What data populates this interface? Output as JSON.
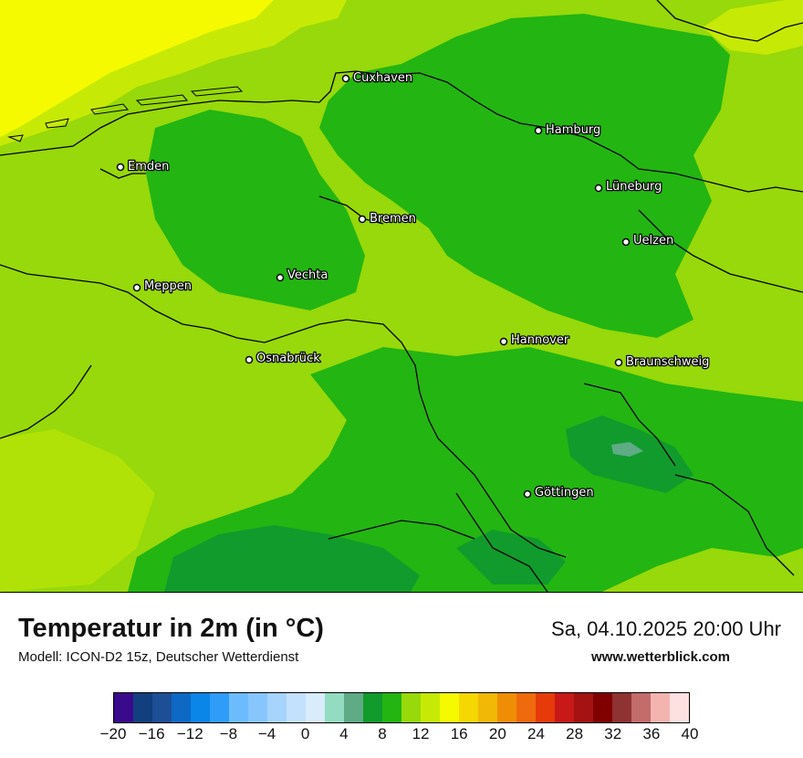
{
  "header": {
    "title": "Temperatur in 2m (in °C)",
    "subtitle": "Modell: ICON-D2 15z, Deutscher Wetterdienst",
    "datetime": "Sa, 04.10.2025 20:00 Uhr",
    "website": "www.wetterblick.com"
  },
  "map": {
    "cities": [
      {
        "name": "Cuxhaven"
      },
      {
        "name": "Hamburg"
      },
      {
        "name": "Emden"
      },
      {
        "name": "Lüneburg"
      },
      {
        "name": "Bremen"
      },
      {
        "name": "Uelzen"
      },
      {
        "name": "Vechta"
      },
      {
        "name": "Meppen"
      },
      {
        "name": "Hannover"
      },
      {
        "name": "Osnabrück"
      },
      {
        "name": "Braunschweig"
      },
      {
        "name": "Göttingen"
      }
    ]
  },
  "legend": {
    "colors": [
      "#3a0a8c",
      "#12407e",
      "#1d4f96",
      "#0e69c4",
      "#0a85e8",
      "#2f9cf8",
      "#6cbcfd",
      "#87c6fd",
      "#a6d4fc",
      "#c3e1fd",
      "#d9ecfc",
      "#93dcc1",
      "#5fab86",
      "#109b2c",
      "#23b512",
      "#97d90a",
      "#c6ea05",
      "#f5fa00",
      "#f4d703",
      "#f1b805",
      "#f08d06",
      "#ee6a0d",
      "#e63a0a",
      "#c81818",
      "#a41212",
      "#800000",
      "#8f3232",
      "#c26c6c",
      "#f3b4b0",
      "#fde0e0"
    ],
    "ticks": [
      "−20",
      "−16",
      "−12",
      "−8",
      "−4",
      "0",
      "4",
      "8",
      "12",
      "16",
      "20",
      "24",
      "28",
      "32",
      "36",
      "40"
    ]
  }
}
